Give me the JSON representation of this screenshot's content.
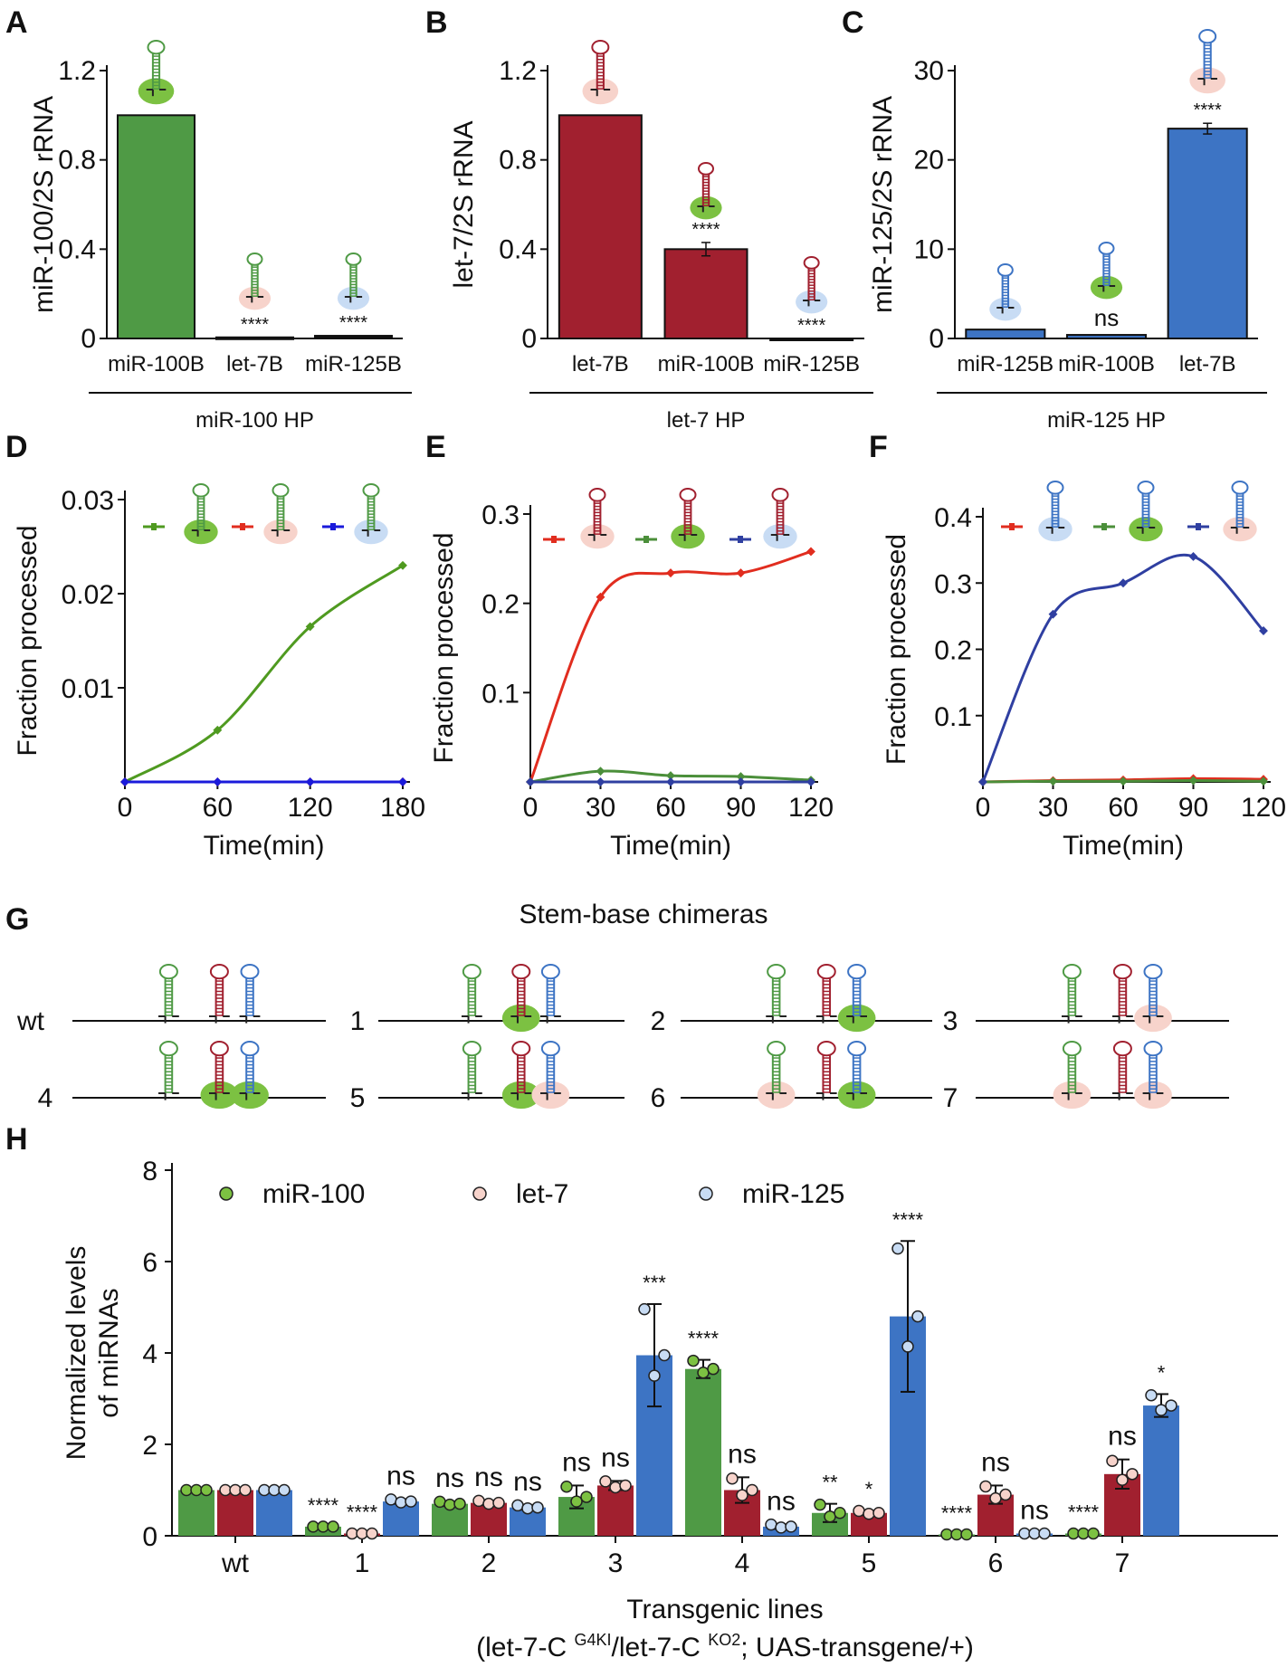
{
  "colors": {
    "green": "#4f9a45",
    "red": "#a1202f",
    "blue": "#3d74c4",
    "pink": "#f7d3cb",
    "lightblue": "#c8dcf4",
    "limegreen": "#7cc142",
    "lineRed": "#e12d1f",
    "lineGreen": "#4b8f3a",
    "lineBlue": "#2f3fa1",
    "lineGreenD": "#4f9a20",
    "lineBlueD": "#1a1adb"
  },
  "panel_letters": [
    "A",
    "B",
    "C",
    "D",
    "E",
    "F",
    "G",
    "H"
  ],
  "chart_data": [
    {
      "panel": "A",
      "type": "bar",
      "ylabel": "miR-100/2S rRNA",
      "group_label": "miR-100 HP",
      "categories": [
        "miR-100B",
        "let-7B",
        "miR-125B"
      ],
      "values": [
        1.0,
        0.005,
        0.012
      ],
      "colors": [
        "#4f9a45",
        "#111111",
        "#111111"
      ],
      "significance": [
        "",
        "****",
        "****"
      ],
      "ylim": [
        0,
        1.2
      ],
      "yticks": [
        "0",
        "0.4",
        "0.8",
        "1.2"
      ],
      "ytick_values": [
        0,
        0.4,
        0.8,
        1.2
      ]
    },
    {
      "panel": "B",
      "type": "bar",
      "ylabel": "let-7/2S rRNA",
      "group_label": "let-7 HP",
      "categories": [
        "let-7B",
        "miR-100B",
        "miR-125B"
      ],
      "values": [
        1.0,
        0.4,
        0.0
      ],
      "errors": [
        0,
        0.03,
        0
      ],
      "colors": [
        "#a1202f",
        "#a1202f",
        "#a1202f"
      ],
      "significance": [
        "",
        "****",
        "****"
      ],
      "ylim": [
        0,
        1.2
      ],
      "yticks": [
        "0",
        "0.4",
        "0.8",
        "1.2"
      ],
      "ytick_values": [
        0,
        0.4,
        0.8,
        1.2
      ]
    },
    {
      "panel": "C",
      "type": "bar",
      "ylabel": "miR-125/2S rRNA",
      "group_label": "miR-125 HP",
      "categories": [
        "miR-125B",
        "miR-100B",
        "let-7B"
      ],
      "values": [
        1.0,
        0.4,
        23.5
      ],
      "errors": [
        0,
        0,
        0.6
      ],
      "colors": [
        "#3d74c4",
        "#3d74c4",
        "#3d74c4"
      ],
      "significance": [
        "",
        "ns",
        "****"
      ],
      "ylim": [
        0,
        30
      ],
      "yticks": [
        "0",
        "10",
        "20",
        "30"
      ],
      "ytick_values": [
        0,
        10,
        20,
        30
      ]
    },
    {
      "panel": "D",
      "type": "line",
      "ylabel": "Fraction processed",
      "xlabel": "Time(min)",
      "xticks": [
        "0",
        "60",
        "120",
        "180"
      ],
      "xtick_values": [
        0,
        60,
        120,
        180
      ],
      "yticks": [
        "0.01",
        "0.02",
        "0.03"
      ],
      "ytick_values": [
        0.01,
        0.02,
        0.03
      ],
      "xlim": [
        0,
        180
      ],
      "ylim": [
        0,
        0.03
      ],
      "series": [
        {
          "color": "#4f9a20",
          "x": [
            0,
            60,
            120,
            180
          ],
          "y": [
            0,
            0.0055,
            0.0165,
            0.023
          ]
        },
        {
          "color": "#e12d1f",
          "x": [
            0,
            60,
            120,
            180
          ],
          "y": [
            0,
            0,
            0,
            0
          ]
        },
        {
          "color": "#1a1adb",
          "x": [
            0,
            60,
            120,
            180
          ],
          "y": [
            0,
            0,
            0,
            0
          ]
        }
      ]
    },
    {
      "panel": "E",
      "type": "line",
      "ylabel": "Fraction processed",
      "xlabel": "Time(min)",
      "xticks": [
        "0",
        "30",
        "60",
        "90",
        "120"
      ],
      "xtick_values": [
        0,
        30,
        60,
        90,
        120
      ],
      "yticks": [
        "0.1",
        "0.2",
        "0.3"
      ],
      "ytick_values": [
        0.1,
        0.2,
        0.3
      ],
      "xlim": [
        0,
        120
      ],
      "ylim": [
        0,
        0.3
      ],
      "series": [
        {
          "color": "#e12d1f",
          "x": [
            0,
            30,
            60,
            90,
            120
          ],
          "y": [
            0,
            0.207,
            0.234,
            0.234,
            0.258
          ]
        },
        {
          "color": "#4b8f3a",
          "x": [
            0,
            30,
            60,
            90,
            120
          ],
          "y": [
            0,
            0.012,
            0.007,
            0.006,
            0.002
          ]
        },
        {
          "color": "#2f3fa1",
          "x": [
            0,
            30,
            60,
            90,
            120
          ],
          "y": [
            0,
            0,
            0,
            0,
            0
          ]
        }
      ]
    },
    {
      "panel": "F",
      "type": "line",
      "ylabel": "Fraction processed",
      "xlabel": "Time(min)",
      "xticks": [
        "0",
        "30",
        "60",
        "90",
        "120"
      ],
      "xtick_values": [
        0,
        30,
        60,
        90,
        120
      ],
      "yticks": [
        "0.1",
        "0.2",
        "0.3",
        "0.4"
      ],
      "ytick_values": [
        0.1,
        0.2,
        0.3,
        0.4
      ],
      "xlim": [
        0,
        120
      ],
      "ylim": [
        0,
        0.4
      ],
      "series": [
        {
          "color": "#e12d1f",
          "x": [
            0,
            30,
            60,
            90,
            120
          ],
          "y": [
            0,
            0.002,
            0.003,
            0.005,
            0.004
          ]
        },
        {
          "color": "#4b8f3a",
          "x": [
            0,
            30,
            60,
            90,
            120
          ],
          "y": [
            0,
            0.001,
            0.001,
            0.002,
            0.001
          ]
        },
        {
          "color": "#2f3fa1",
          "x": [
            0,
            30,
            60,
            90,
            120
          ],
          "y": [
            0,
            0.253,
            0.3,
            0.34,
            0.228
          ]
        }
      ]
    },
    {
      "panel": "H",
      "type": "bar",
      "ylabel": "Normalized levels of miRNAs",
      "xlabel": "Transgenic lines",
      "xlabel2": "(let-7-C G4KI/let-7-C KO2; UAS-transgene/+)",
      "ylim": [
        0,
        8
      ],
      "yticks": [
        "0",
        "2",
        "4",
        "6",
        "8"
      ],
      "ytick_values": [
        0,
        2,
        4,
        6,
        8
      ],
      "categories": [
        "wt",
        "1",
        "2",
        "3",
        "4",
        "5",
        "6",
        "7"
      ],
      "series": [
        {
          "name": "miR-100",
          "color": "#4f9a45",
          "values": [
            1.0,
            0.2,
            0.7,
            0.85,
            3.65,
            0.5,
            0.03,
            0.05
          ],
          "errors": [
            0,
            0,
            0.05,
            0.25,
            0.2,
            0.2,
            0,
            0
          ],
          "significance": [
            "",
            "****",
            "ns",
            "ns",
            "****",
            "**",
            "****",
            "****"
          ]
        },
        {
          "name": "let-7",
          "color": "#a1202f",
          "values": [
            1.0,
            0.05,
            0.72,
            1.1,
            1.0,
            0.5,
            0.9,
            1.35
          ],
          "errors": [
            0,
            0,
            0.05,
            0.1,
            0.28,
            0.05,
            0.2,
            0.32
          ],
          "significance": [
            "",
            "****",
            "ns",
            "ns",
            "ns",
            "*",
            "ns",
            "ns"
          ]
        },
        {
          "name": "miR-125",
          "color": "#3d74c4",
          "values": [
            1.0,
            0.75,
            0.62,
            3.95,
            0.2,
            4.8,
            0.05,
            2.85
          ],
          "errors": [
            0,
            0.05,
            0.05,
            1.12,
            0.05,
            1.65,
            0,
            0.25
          ],
          "significance": [
            "",
            "ns",
            "ns",
            "***",
            "ns",
            "****",
            "ns",
            "*"
          ]
        }
      ]
    }
  ],
  "legend_labels": {
    "s1": "miR-100",
    "s2": "let-7",
    "s3": "miR-125"
  },
  "panel_g": {
    "title": "Stem-base chimeras",
    "constructs": [
      "wt",
      "1",
      "2",
      "3",
      "4",
      "5",
      "6",
      "7"
    ]
  },
  "xlabel2_parts": {
    "a": "(let-7-C ",
    "b": "G4KI",
    "c": "/let-7-C ",
    "d": "KO2",
    "e": "; UAS-transgene/+)"
  }
}
